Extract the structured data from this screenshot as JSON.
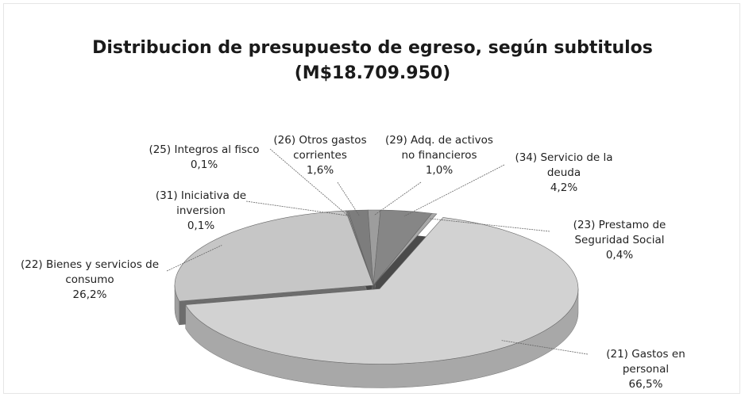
{
  "chart_data": {
    "type": "pie",
    "title": "Distribucion de presupuesto de egreso, según subtitulos",
    "subtitle": "(M$18.709.950)",
    "categories": [
      "(25) Integros al fisco",
      "(31) Iniciativa de inversion",
      "(26) Otros gastos corrientes",
      "(29) Adq. de activos no financieros",
      "(34) Servicio de la deuda",
      "(23) Prestamo de Seguridad Social",
      "(21) Gastos en personal",
      "(22) Bienes y servicios de consumo"
    ],
    "values": [
      0.1,
      0.1,
      1.6,
      1.0,
      4.2,
      0.4,
      66.5,
      26.2
    ],
    "value_labels": [
      "0,1%",
      "0,1%",
      "1,6%",
      "1,0%",
      "4,2%",
      "0,4%",
      "66,5%",
      "26,2%"
    ],
    "colors": [
      "#9a9a9a",
      "#8a8a8a",
      "#7d7d7d",
      "#9d9d9d",
      "#868686",
      "#a8a8a8",
      "#d2d2d2",
      "#c6c6c6"
    ]
  }
}
